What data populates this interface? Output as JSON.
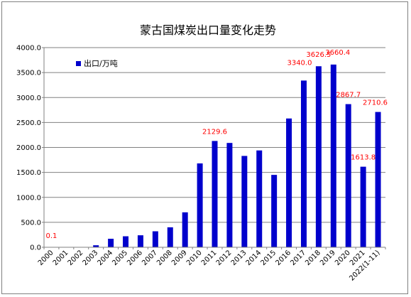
{
  "chart_data": {
    "type": "bar",
    "title": "蒙古国煤炭出口量变化走势",
    "legend": {
      "label": "出口/万吨",
      "position": "top-left"
    },
    "categories": [
      "2000",
      "2001",
      "2002",
      "2003",
      "2004",
      "2005",
      "2006",
      "2007",
      "2008",
      "2009",
      "2010",
      "2011",
      "2012",
      "2013",
      "2014",
      "2015",
      "2016",
      "2017",
      "2018",
      "2019",
      "2020",
      "2021",
      "2022(1-11)"
    ],
    "series": [
      {
        "name": "出口/万吨",
        "values": [
          0.1,
          0,
          0,
          40,
          170,
          220,
          240,
          320,
          400,
          700,
          1680,
          2129.6,
          2090,
          1830,
          1940,
          1450,
          2580,
          3340.0,
          3626.5,
          3660.4,
          2867.7,
          1613.8,
          2710.6
        ]
      }
    ],
    "data_labels": [
      {
        "index": 0,
        "text": "0.1"
      },
      {
        "index": 11,
        "text": "2129.6"
      },
      {
        "index": 17,
        "text": "3340.0"
      },
      {
        "index": 18,
        "text": "3626.5"
      },
      {
        "index": 19,
        "text": "3660.4"
      },
      {
        "index": 20,
        "text": "2867.7"
      },
      {
        "index": 21,
        "text": "1613.8"
      },
      {
        "index": 22,
        "text": "2710.6"
      }
    ],
    "ylim": [
      0,
      4000
    ],
    "yticks": [
      "0.0",
      "500.0",
      "1000.0",
      "1500.0",
      "2000.0",
      "2500.0",
      "3000.0",
      "3500.0",
      "4000.0"
    ],
    "grid": "horizontal",
    "colors": {
      "bar": "#0000CC",
      "data_label": "#FF0000",
      "grid": "#808080",
      "text": "#000000"
    }
  }
}
